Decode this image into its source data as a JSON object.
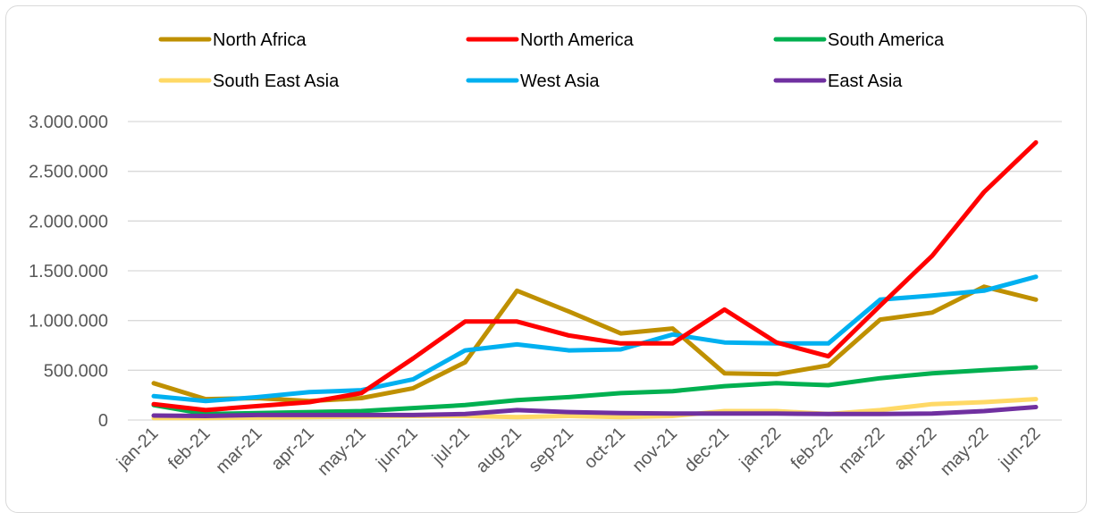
{
  "chart_data": {
    "type": "line",
    "title": "",
    "xlabel": "",
    "ylabel": "",
    "categories": [
      "jan-21",
      "feb-21",
      "mar-21",
      "apr-21",
      "may-21",
      "jun-21",
      "jul-21",
      "aug-21",
      "sep-21",
      "oct-21",
      "nov-21",
      "dec-21",
      "jan-22",
      "feb-22",
      "mar-22",
      "apr-22",
      "may-22",
      "jun-22"
    ],
    "y_ticks": [
      "0",
      "500.000",
      "1.000.000",
      "1.500.000",
      "2.000.000",
      "2.500.000",
      "3.000.000"
    ],
    "ylim": [
      0,
      3000000
    ],
    "grid": true,
    "legend_position": "top",
    "series": [
      {
        "name": "North Africa",
        "color": "#bf9000",
        "values": [
          370000,
          210000,
          220000,
          190000,
          220000,
          320000,
          580000,
          1300000,
          1090000,
          870000,
          920000,
          470000,
          460000,
          550000,
          1010000,
          1080000,
          1340000,
          1210000
        ]
      },
      {
        "name": "North America",
        "color": "#ff0000",
        "values": [
          160000,
          100000,
          140000,
          180000,
          270000,
          620000,
          990000,
          990000,
          850000,
          770000,
          770000,
          1110000,
          780000,
          640000,
          1150000,
          1650000,
          2290000,
          2790000
        ]
      },
      {
        "name": "South America",
        "color": "#00b050",
        "values": [
          150000,
          60000,
          70000,
          80000,
          90000,
          120000,
          150000,
          200000,
          230000,
          270000,
          290000,
          340000,
          370000,
          350000,
          420000,
          470000,
          500000,
          530000
        ]
      },
      {
        "name": "South East Asia",
        "color": "#ffd966",
        "values": [
          20000,
          20000,
          25000,
          30000,
          35000,
          40000,
          40000,
          30000,
          40000,
          30000,
          40000,
          90000,
          90000,
          60000,
          100000,
          160000,
          180000,
          210000
        ]
      },
      {
        "name": "West Asia",
        "color": "#00b0f0",
        "values": [
          240000,
          190000,
          230000,
          280000,
          300000,
          410000,
          700000,
          760000,
          700000,
          710000,
          860000,
          780000,
          770000,
          770000,
          1210000,
          1250000,
          1300000,
          1440000
        ]
      },
      {
        "name": "East Asia",
        "color": "#7030a0",
        "values": [
          45000,
          40000,
          50000,
          50000,
          50000,
          50000,
          60000,
          100000,
          80000,
          70000,
          65000,
          65000,
          65000,
          60000,
          60000,
          65000,
          90000,
          130000
        ]
      }
    ]
  }
}
